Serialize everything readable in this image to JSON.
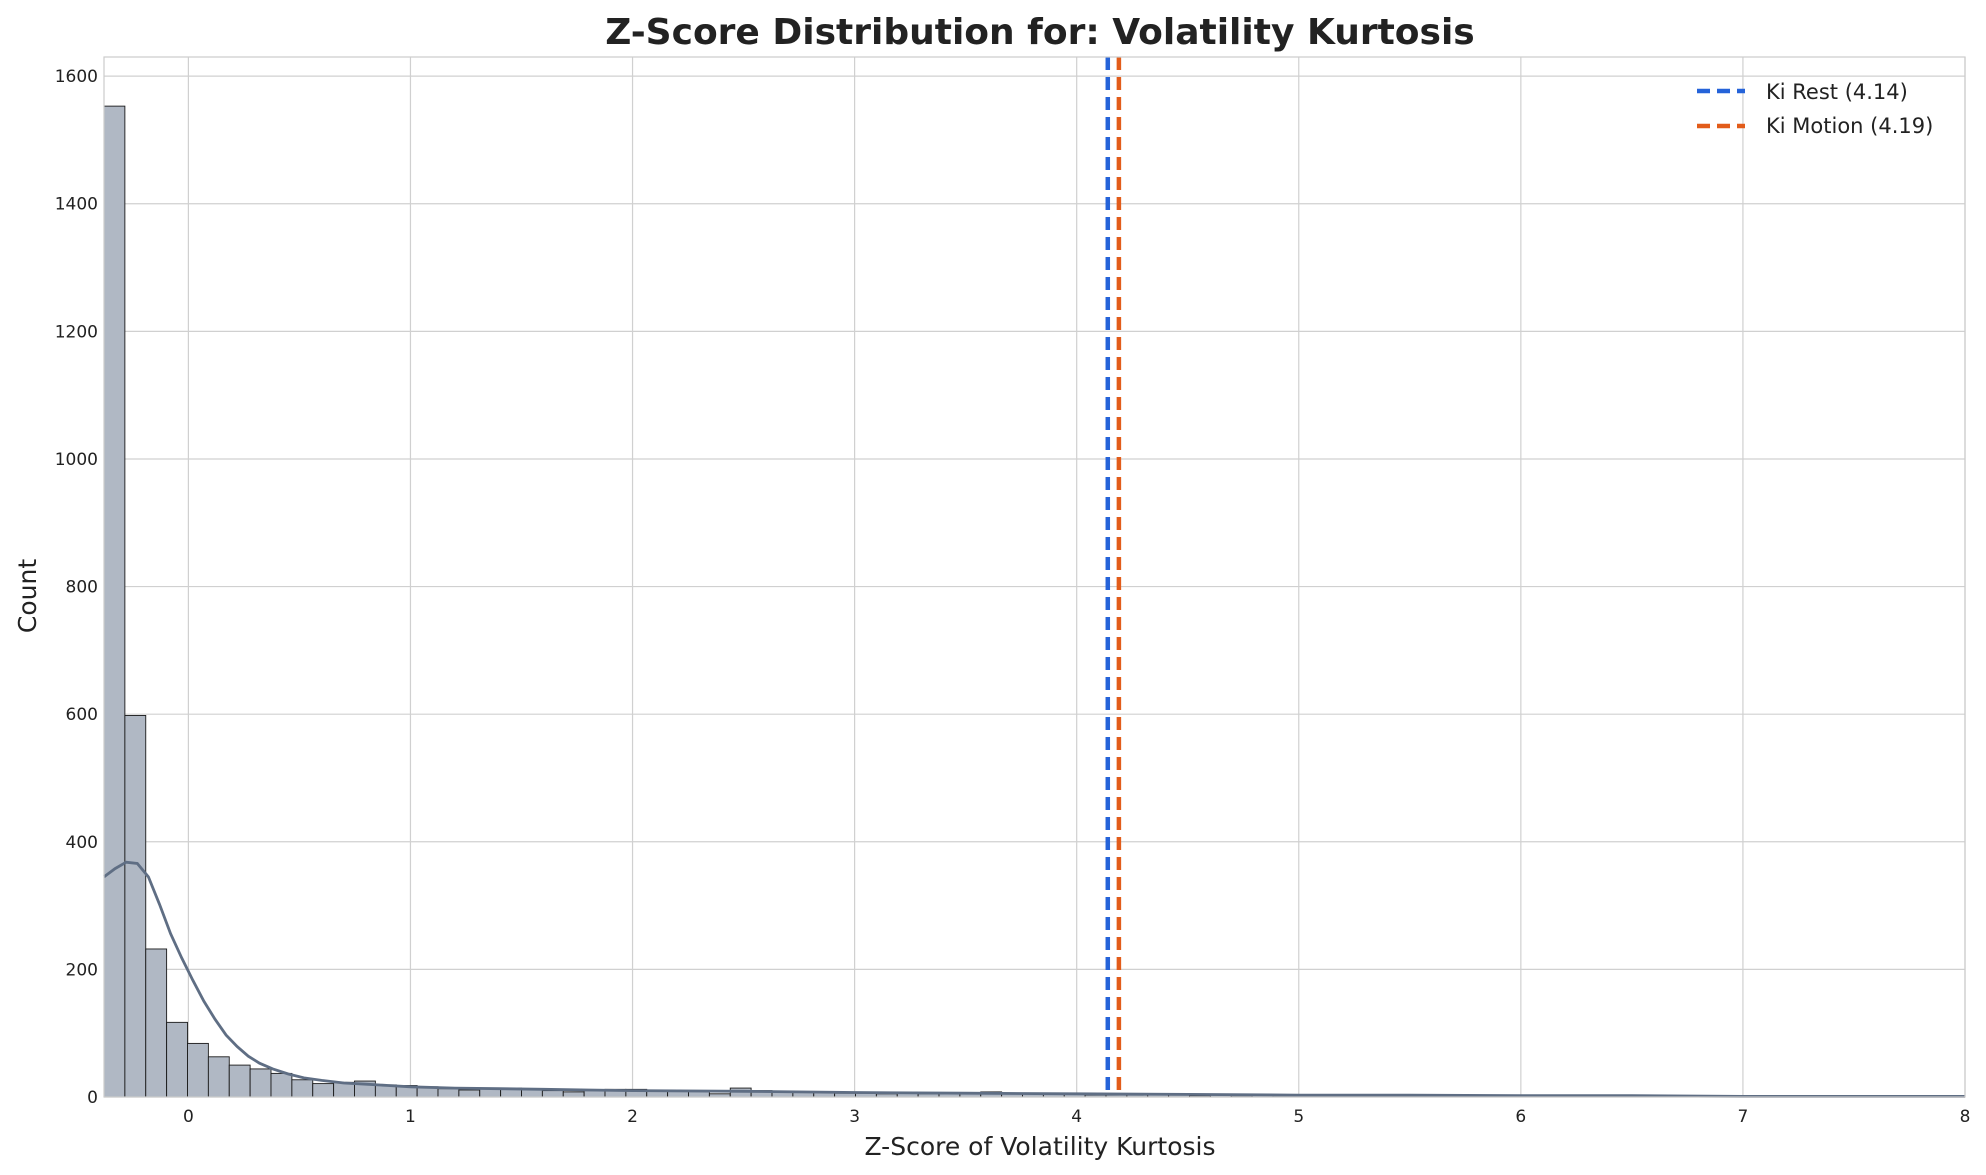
{
  "chart_data": {
    "type": "bar",
    "title": "Z-Score Distribution for: Volatility Kurtosis",
    "xlabel": "Z-Score of Volatility Kurtosis",
    "ylabel": "Count",
    "xlim": [
      -0.38,
      8
    ],
    "ylim": [
      0,
      1630
    ],
    "x_ticks": [
      0,
      1,
      2,
      3,
      4,
      5,
      6,
      7,
      8
    ],
    "y_ticks": [
      0,
      200,
      400,
      600,
      800,
      1000,
      1200,
      1400,
      1600
    ],
    "grid": true,
    "legend_position": "top-right",
    "colors": {
      "bar_fill": "#b0b8c4",
      "bar_edge": "#1a1a1a",
      "kde_line": "#5f6e84",
      "grid": "#d0d0d0",
      "rest_line": "#2563d9",
      "motion_line": "#e25c1a"
    },
    "histogram": {
      "bin_start": -0.38,
      "bin_width": 0.094,
      "counts": [
        1553,
        598,
        232,
        117,
        84,
        63,
        50,
        44,
        37,
        27,
        21,
        23,
        25,
        19,
        18,
        16,
        13,
        11,
        13,
        14,
        12,
        10,
        8,
        10,
        12,
        12,
        11,
        10,
        9,
        5,
        14,
        10,
        9,
        8,
        7,
        6,
        6,
        5,
        6,
        5,
        5,
        6,
        8,
        5,
        6,
        4,
        4,
        3,
        3,
        3,
        5,
        3,
        2,
        3,
        2,
        3,
        2,
        2,
        2,
        2,
        1,
        1,
        2,
        1,
        1,
        1,
        1,
        1,
        1,
        1,
        1,
        1,
        1,
        1,
        1,
        1,
        1,
        1,
        1,
        1,
        1,
        1,
        1,
        1,
        1,
        1,
        1,
        1,
        1
      ]
    },
    "kde": {
      "x": [
        -0.38,
        -0.33,
        -0.28,
        -0.23,
        -0.18,
        -0.13,
        -0.08,
        -0.03,
        0.02,
        0.07,
        0.12,
        0.17,
        0.22,
        0.27,
        0.32,
        0.38,
        0.45,
        0.52,
        0.6,
        0.7,
        0.8,
        0.9,
        1.0,
        1.2,
        1.4,
        1.6,
        1.8,
        2.0,
        2.5,
        3.0,
        3.5,
        4.0,
        4.5,
        5.0,
        5.5,
        6.0,
        6.5,
        7.0,
        7.5,
        8.0
      ],
      "y": [
        345,
        358,
        368,
        366,
        345,
        302,
        256,
        218,
        183,
        150,
        122,
        97,
        79,
        64,
        53,
        44,
        36,
        30,
        26,
        22,
        20,
        18,
        16,
        14,
        13,
        12,
        11,
        10,
        9,
        7,
        6,
        5,
        4,
        3,
        3,
        2,
        2,
        1,
        1,
        1
      ]
    },
    "vlines": [
      {
        "name": "Ki Rest (4.14)",
        "x": 4.14,
        "color": "#2563d9"
      },
      {
        "name": "Ki Motion (4.19)",
        "x": 4.19,
        "color": "#e25c1a"
      }
    ]
  }
}
